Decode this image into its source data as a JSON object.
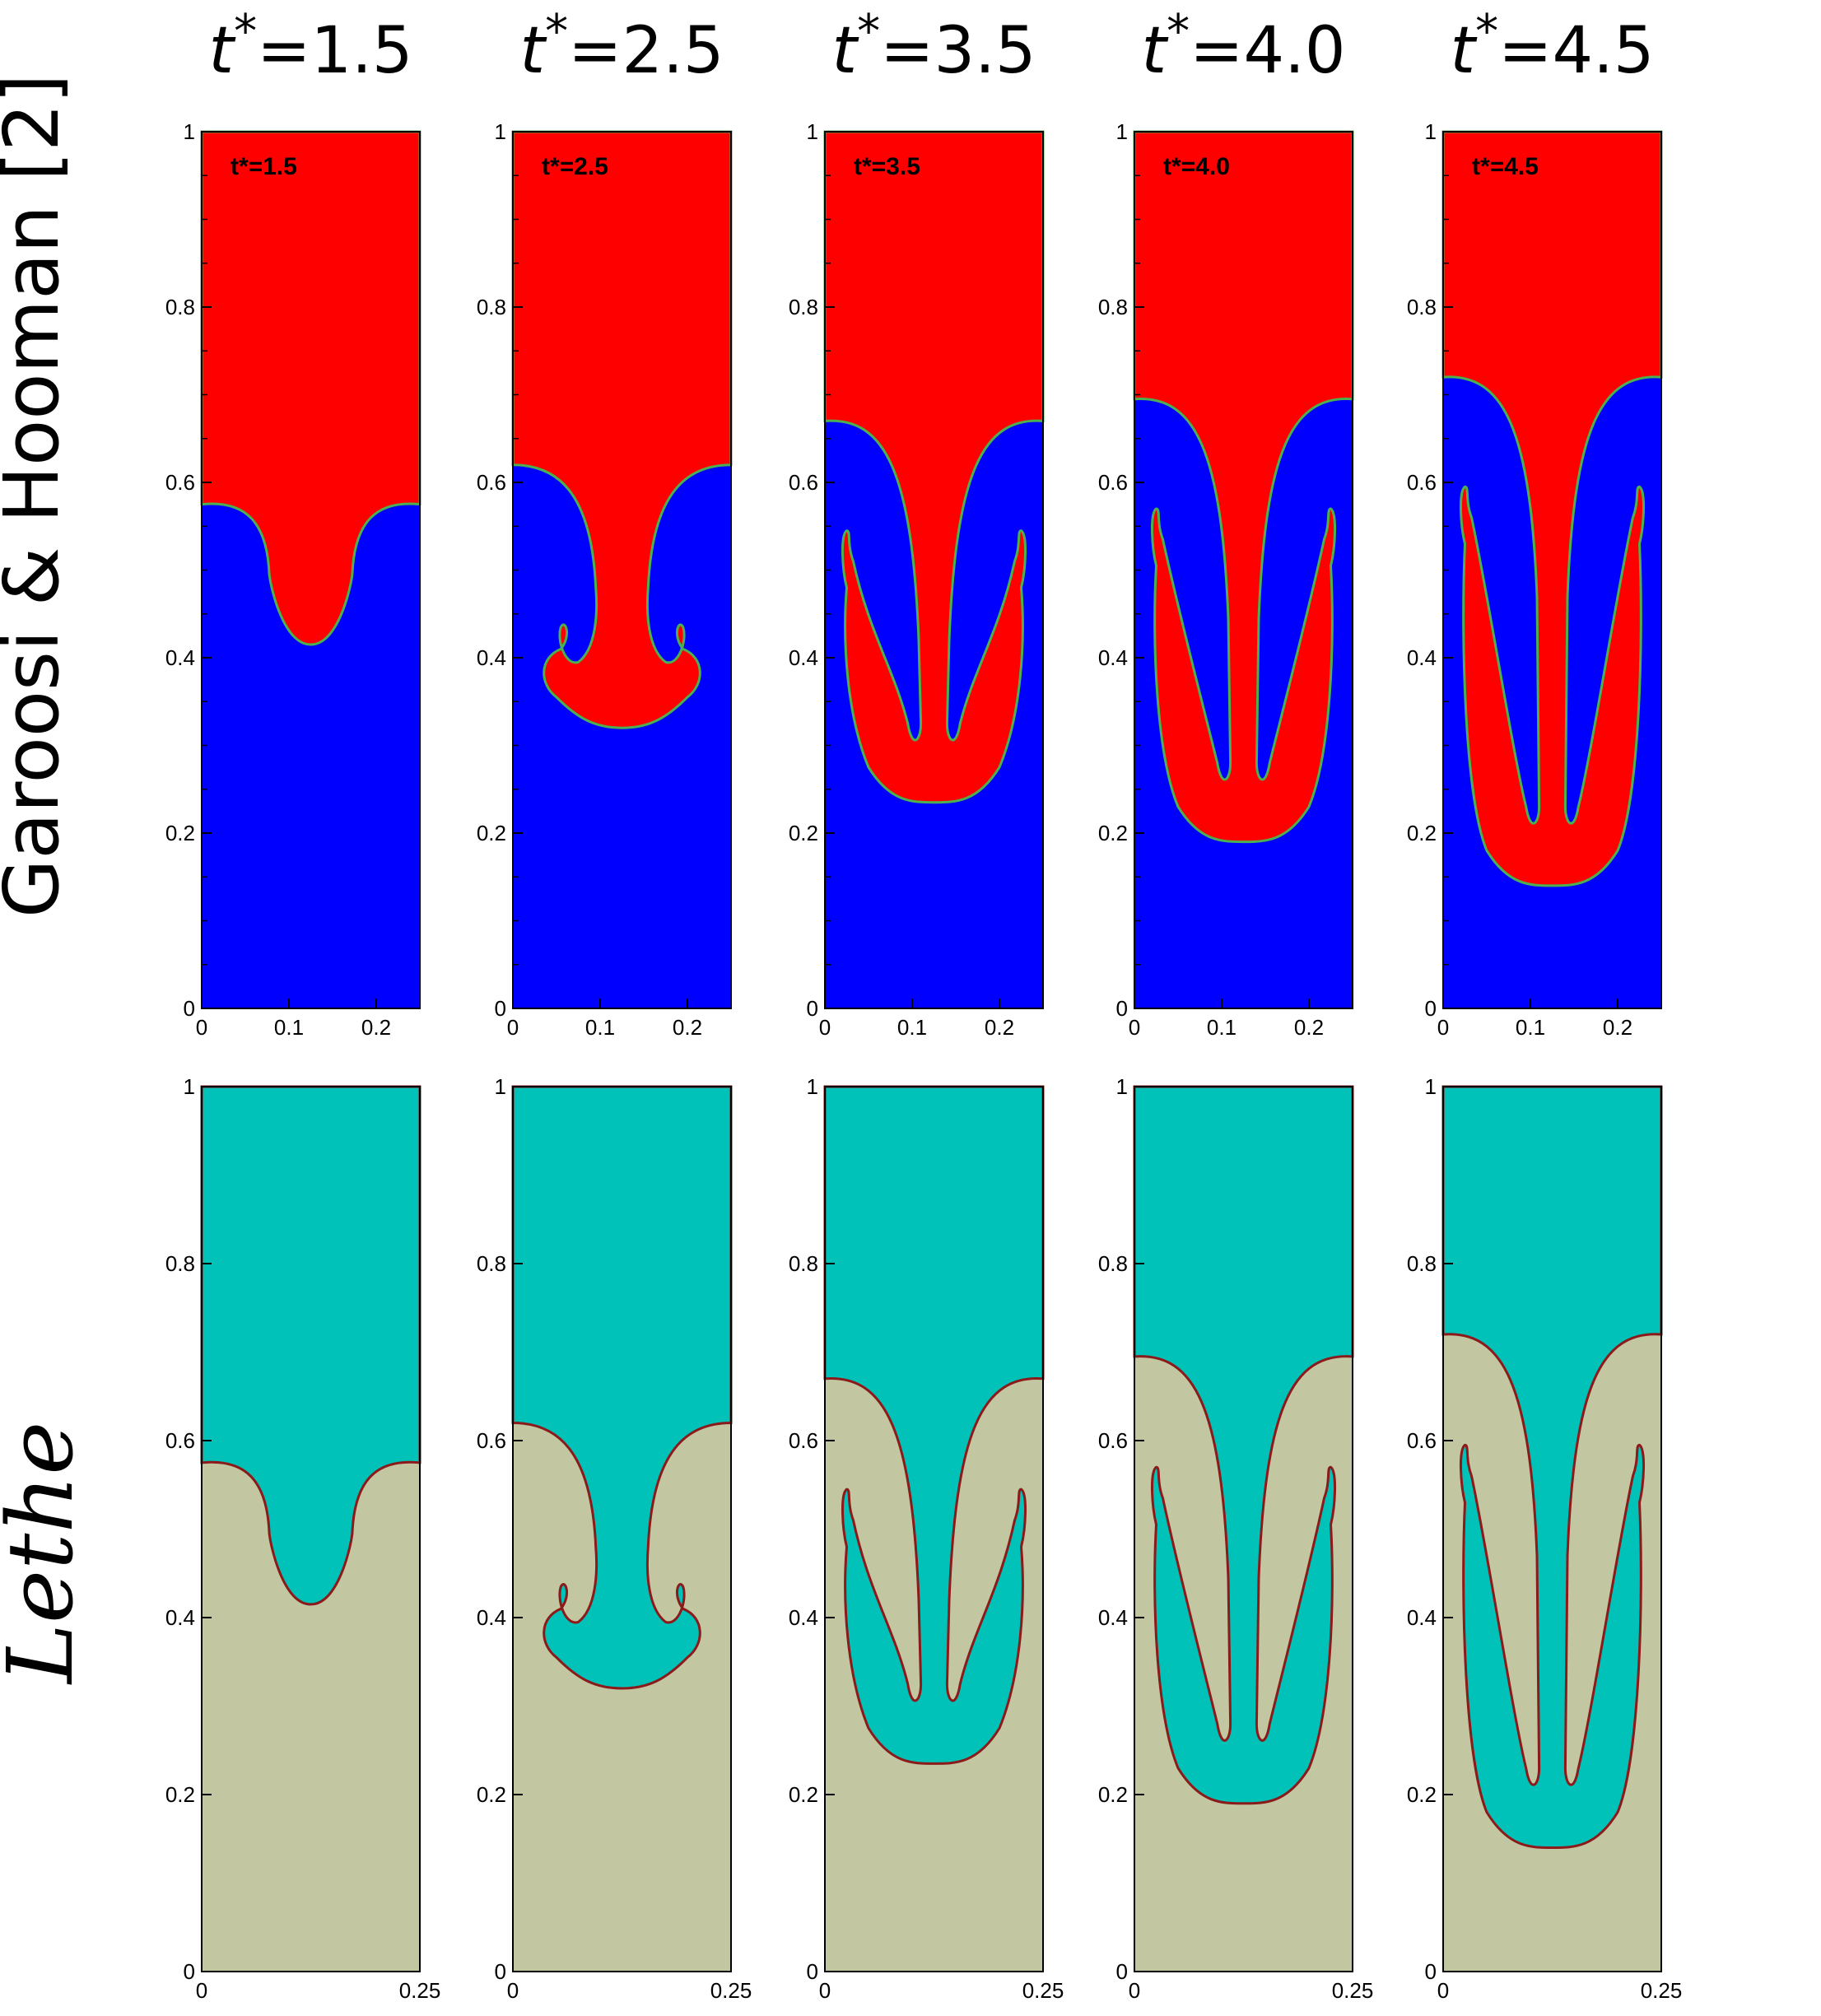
{
  "columns": [
    {
      "label_prefix": "t",
      "label_star": "*",
      "label_value": "=1.5",
      "inset_label": "t*=1.5"
    },
    {
      "label_prefix": "t",
      "label_star": "*",
      "label_value": "=2.5",
      "inset_label": "t*=2.5"
    },
    {
      "label_prefix": "t",
      "label_star": "*",
      "label_value": "=3.5",
      "inset_label": "t*=3.5"
    },
    {
      "label_prefix": "t",
      "label_star": "*",
      "label_value": "=4.0",
      "inset_label": "t*=4.0"
    },
    {
      "label_prefix": "t",
      "label_star": "*",
      "label_value": "=4.5",
      "inset_label": "t*=4.5"
    }
  ],
  "rows": [
    {
      "label": "Garoosi & Hooman [2]",
      "heavy_color": "#ff0000",
      "light_color": "#0000ff",
      "interface_color": "#4caf50",
      "y_ticks": [
        "0",
        "0.2",
        "0.4",
        "0.6",
        "0.8",
        "1"
      ],
      "x_ticks": [
        "0",
        "0.1",
        "0.2"
      ]
    },
    {
      "label": "Lethe",
      "heavy_color": "#00c2b8",
      "light_color": "#c2c6a1",
      "interface_color": "#8b1a1a",
      "y_ticks": [
        "0",
        "0.2",
        "0.4",
        "0.6",
        "0.8",
        "1"
      ],
      "x_ticks": [
        "0",
        "0.25"
      ]
    }
  ],
  "frames": [
    {
      "plane": 0.575,
      "tip": 0.415,
      "type": "bulge"
    },
    {
      "plane": 0.62,
      "tip": 0.32,
      "type": "mushroom"
    },
    {
      "plane": 0.67,
      "tip": 0.235,
      "type": "fingers"
    },
    {
      "plane": 0.695,
      "tip": 0.19,
      "type": "fingers"
    },
    {
      "plane": 0.72,
      "tip": 0.14,
      "type": "fingers"
    }
  ]
}
